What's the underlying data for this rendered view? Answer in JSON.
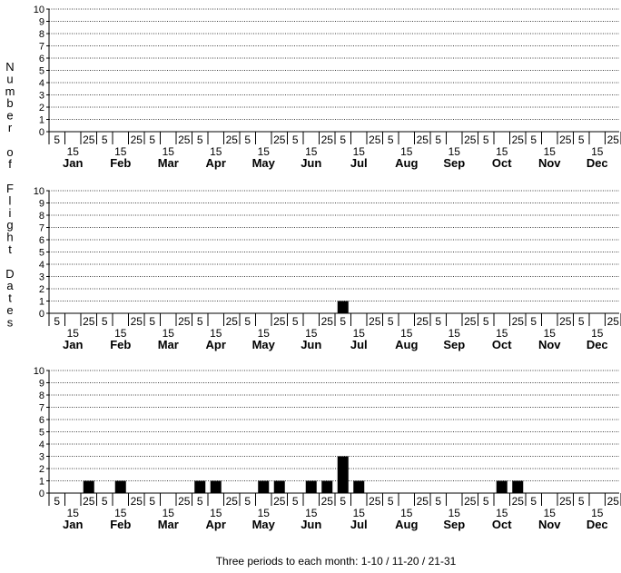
{
  "y_axis_label": "Number of Flight Dates",
  "footnote": "Three periods to each month: 1-10 / 11-20 / 21-31",
  "chart_data": [
    {
      "type": "bar",
      "ylim": [
        0,
        10
      ],
      "yticks": [
        0,
        1,
        2,
        3,
        4,
        5,
        6,
        7,
        8,
        9,
        10
      ],
      "grid": true,
      "months": [
        "Jan",
        "Feb",
        "Mar",
        "Apr",
        "May",
        "Jun",
        "Jul",
        "Aug",
        "Sep",
        "Oct",
        "Nov",
        "Dec"
      ],
      "period_labels": [
        "5",
        "15",
        "25"
      ],
      "values": [
        0,
        0,
        0,
        0,
        0,
        0,
        0,
        0,
        0,
        0,
        0,
        0,
        0,
        0,
        0,
        0,
        0,
        0,
        0,
        0,
        0,
        0,
        0,
        0,
        0,
        0,
        0,
        0,
        0,
        0,
        0,
        0,
        0,
        0,
        0,
        0
      ]
    },
    {
      "type": "bar",
      "ylim": [
        0,
        10
      ],
      "yticks": [
        0,
        1,
        2,
        3,
        4,
        5,
        6,
        7,
        8,
        9,
        10
      ],
      "grid": true,
      "months": [
        "Jan",
        "Feb",
        "Mar",
        "Apr",
        "May",
        "Jun",
        "Jul",
        "Aug",
        "Sep",
        "Oct",
        "Nov",
        "Dec"
      ],
      "period_labels": [
        "5",
        "15",
        "25"
      ],
      "values": [
        0,
        0,
        0,
        0,
        0,
        0,
        0,
        0,
        0,
        0,
        0,
        0,
        0,
        0,
        0,
        0,
        0,
        0,
        1,
        0,
        0,
        0,
        0,
        0,
        0,
        0,
        0,
        0,
        0,
        0,
        0,
        0,
        0,
        0,
        0,
        0
      ]
    },
    {
      "type": "bar",
      "ylim": [
        0,
        10
      ],
      "yticks": [
        0,
        1,
        2,
        3,
        4,
        5,
        6,
        7,
        8,
        9,
        10
      ],
      "grid": true,
      "months": [
        "Jan",
        "Feb",
        "Mar",
        "Apr",
        "May",
        "Jun",
        "Jul",
        "Aug",
        "Sep",
        "Oct",
        "Nov",
        "Dec"
      ],
      "period_labels": [
        "5",
        "15",
        "25"
      ],
      "values": [
        0,
        0,
        1,
        0,
        1,
        0,
        0,
        0,
        0,
        1,
        1,
        0,
        0,
        1,
        1,
        0,
        1,
        1,
        3,
        1,
        0,
        0,
        0,
        0,
        0,
        0,
        0,
        0,
        1,
        1,
        0,
        0,
        0,
        0,
        0,
        0
      ]
    }
  ]
}
